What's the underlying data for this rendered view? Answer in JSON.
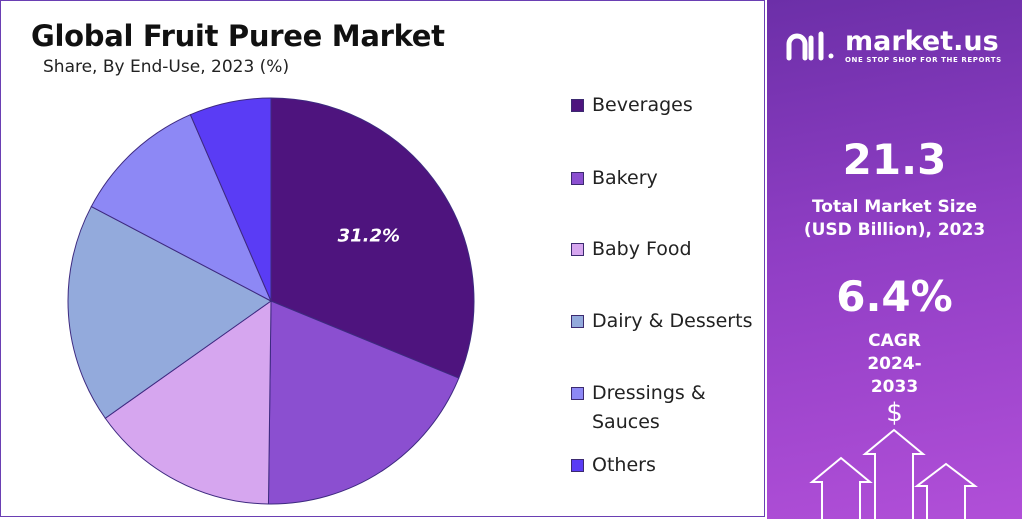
{
  "chart_data": {
    "type": "pie",
    "title": "Global Fruit Puree Market",
    "subtitle": "Share, By End-Use, 2023 (%)",
    "slices": [
      {
        "label": "Beverages",
        "value": 31.2,
        "color": "#4e147e",
        "data_label": "31.2%"
      },
      {
        "label": "Bakery",
        "value": 19.0,
        "color": "#8b4fd0",
        "data_label": ""
      },
      {
        "label": "Baby Food",
        "value": 15.0,
        "color": "#d6a6ef",
        "data_label": ""
      },
      {
        "label": "Dairy & Desserts",
        "value": 17.5,
        "color": "#93aadc",
        "data_label": ""
      },
      {
        "label": "Dressings & Sauces",
        "value": 10.8,
        "color": "#8d88f5",
        "data_label": ""
      },
      {
        "label": "Others",
        "value": 6.5,
        "color": "#5a3cf5",
        "data_label": ""
      }
    ],
    "legend": {
      "placement": "right",
      "items": [
        {
          "label": "Beverages",
          "color": "#4e147e"
        },
        {
          "label": "Bakery",
          "color": "#8b4fd0"
        },
        {
          "label": "Baby Food",
          "color": "#d6a6ef"
        },
        {
          "label": "Dairy & Desserts",
          "color": "#93aadc"
        },
        {
          "label": "Dressings & Sauces",
          "color": "#8d88f5"
        },
        {
          "label": "Others",
          "color": "#5a3cf5"
        }
      ]
    }
  },
  "brand": {
    "name": "market.us",
    "tagline": "ONE STOP SHOP FOR THE REPORTS",
    "logo_icon": "market-us-logo-icon"
  },
  "stats": {
    "market_size_value": "21.3",
    "market_size_label": "Total Market Size (USD Billion), 2023",
    "cagr_value": "6.4%",
    "cagr_label": "CAGR 2024-2033"
  },
  "decor": {
    "dollar_symbol": "$",
    "arrows_icon": "growth-arrows-icon"
  }
}
